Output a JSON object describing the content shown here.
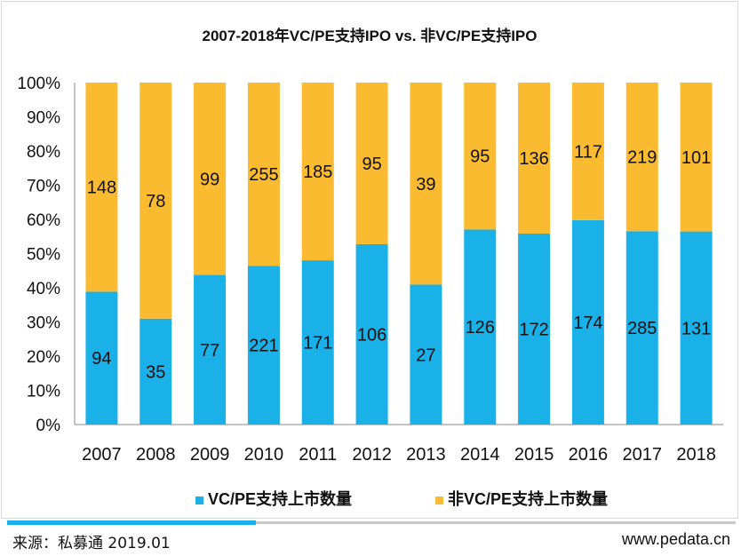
{
  "chart_data": {
    "type": "bar",
    "stacked": true,
    "normalized": true,
    "title": "2007-2018年VC/PE支持IPO vs. 非VC/PE支持IPO",
    "categories": [
      "2007",
      "2008",
      "2009",
      "2010",
      "2011",
      "2012",
      "2013",
      "2014",
      "2015",
      "2016",
      "2017",
      "2018"
    ],
    "series": [
      {
        "name": "VC/PE支持上市数量",
        "color": "#1ab0e8",
        "values": [
          94,
          35,
          77,
          221,
          171,
          106,
          27,
          126,
          172,
          174,
          285,
          131
        ]
      },
      {
        "name": "非VC/PE支持上市数量",
        "color": "#fbbb30",
        "values": [
          148,
          78,
          99,
          255,
          185,
          95,
          39,
          95,
          136,
          117,
          219,
          101
        ]
      }
    ],
    "y_ticks": [
      "0%",
      "10%",
      "20%",
      "30%",
      "40%",
      "50%",
      "60%",
      "70%",
      "80%",
      "90%",
      "100%"
    ],
    "ylim": [
      0,
      100
    ],
    "xlabel": "",
    "ylabel": "",
    "legend_position": "bottom"
  },
  "footer": {
    "source": "来源：私募通 2019.01",
    "website": "www.pedata.cn"
  }
}
